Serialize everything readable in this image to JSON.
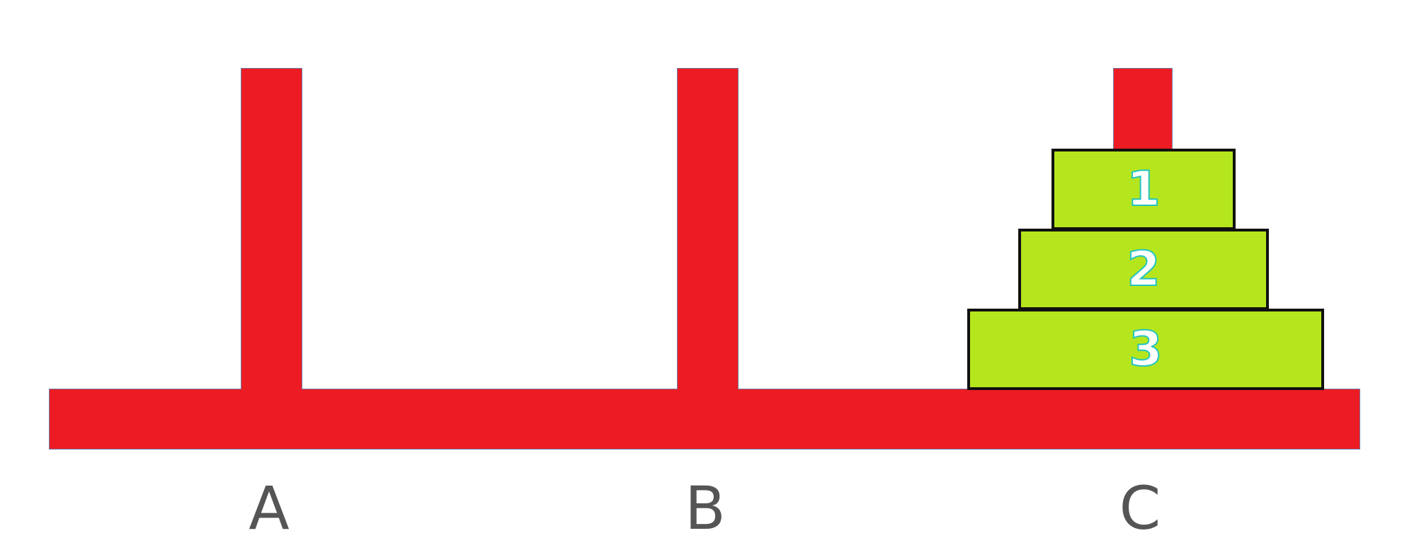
{
  "colors": {
    "peg": "#ed1c24",
    "disk": "#b5e61d",
    "outline": "#111111"
  },
  "pegs": [
    {
      "label": "A"
    },
    {
      "label": "B"
    },
    {
      "label": "C"
    }
  ],
  "disks": [
    {
      "label": "1",
      "peg": "C"
    },
    {
      "label": "2",
      "peg": "C"
    },
    {
      "label": "3",
      "peg": "C"
    }
  ]
}
